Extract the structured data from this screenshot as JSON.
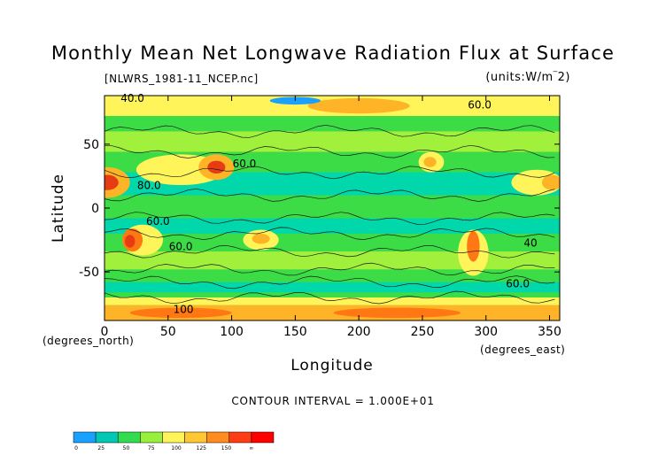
{
  "chart_data": {
    "type": "heatmap",
    "title": "Monthly Mean Net Longwave Radiation Flux at Surface",
    "subtitle_left": "[NLWRS_1981-11_NCEP.nc]",
    "subtitle_right": "(units:W/m^2)",
    "xlabel": "Longitude",
    "ylabel": "Latitude",
    "x_unit_label": "(degrees_east)",
    "y_unit_label": "(degrees_north)",
    "xlim": [
      0,
      358
    ],
    "ylim": [
      -88,
      88
    ],
    "x_ticks": [
      0,
      50,
      100,
      150,
      200,
      250,
      300,
      350
    ],
    "y_ticks": [
      -50,
      0,
      50
    ],
    "contour_interval_text": "CONTOUR INTERVAL = 1.000E+01",
    "contour_labels": [
      "40.0",
      "60.0",
      "80.0",
      "100",
      "40",
      "60.0"
    ],
    "colorbar": {
      "levels": [
        "0",
        "25",
        "50",
        "75",
        "100",
        "125",
        "150",
        "∞"
      ],
      "colors": [
        "#1aa0ff",
        "#00c8b4",
        "#32dc50",
        "#96f03c",
        "#fff55a",
        "#ffc832",
        "#ff8c1e",
        "#ff3c14",
        "#ff0000"
      ]
    },
    "field_colors": {
      "low": "#1aa0ff",
      "teal": "#00d7aa",
      "green": "#3cdc46",
      "lightgreen": "#a0f03c",
      "yellow": "#fff55a",
      "orange": "#ffb428",
      "darkorange": "#ff7814",
      "red": "#e63c14"
    }
  }
}
